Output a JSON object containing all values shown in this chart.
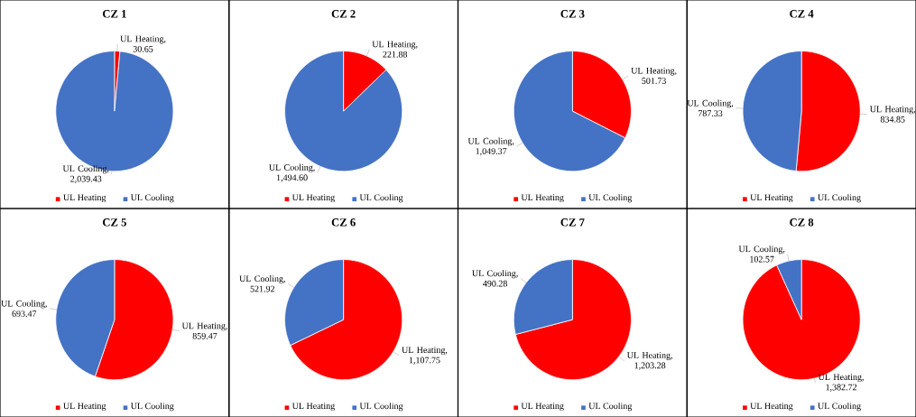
{
  "chart_data": [
    {
      "type": "pie",
      "title": "CZ 1",
      "categories": [
        "UL Heating",
        "UL Cooling"
      ],
      "values": [
        30.65,
        2039.43
      ],
      "value_labels": [
        "UL Heating, 30.65",
        "UL Cooling, 2,039.43"
      ],
      "colors": [
        "#ff0000",
        "#4472c4"
      ],
      "legend": "bottom"
    },
    {
      "type": "pie",
      "title": "CZ 2",
      "categories": [
        "UL Heating",
        "UL Cooling"
      ],
      "values": [
        221.88,
        1494.6
      ],
      "value_labels": [
        "UL Heating, 221.88",
        "UL Cooling, 1,494.60"
      ],
      "colors": [
        "#ff0000",
        "#4472c4"
      ],
      "legend": "bottom"
    },
    {
      "type": "pie",
      "title": "CZ 3",
      "categories": [
        "UL Heating",
        "UL Cooling"
      ],
      "values": [
        501.73,
        1049.37
      ],
      "value_labels": [
        "UL Heating, 501.73",
        "UL Cooling, 1,049.37"
      ],
      "colors": [
        "#ff0000",
        "#4472c4"
      ],
      "legend": "bottom"
    },
    {
      "type": "pie",
      "title": "CZ 4",
      "categories": [
        "UL Heating",
        "UL Cooling"
      ],
      "values": [
        834.85,
        787.33
      ],
      "value_labels": [
        "UL Heating, 834.85",
        "UL Cooling, 787.33"
      ],
      "colors": [
        "#ff0000",
        "#4472c4"
      ],
      "legend": "bottom"
    },
    {
      "type": "pie",
      "title": "CZ 5",
      "categories": [
        "UL Heating",
        "UL Cooling"
      ],
      "values": [
        859.47,
        693.47
      ],
      "value_labels": [
        "UL Heating, 859.47",
        "UL Cooling, 693.47"
      ],
      "colors": [
        "#ff0000",
        "#4472c4"
      ],
      "legend": "bottom"
    },
    {
      "type": "pie",
      "title": "CZ 6",
      "categories": [
        "UL Heating",
        "UL Cooling"
      ],
      "values": [
        1107.75,
        521.92
      ],
      "value_labels": [
        "UL Heating, 1,107.75",
        "UL Cooling, 521.92"
      ],
      "colors": [
        "#ff0000",
        "#4472c4"
      ],
      "legend": "bottom"
    },
    {
      "type": "pie",
      "title": "CZ 7",
      "categories": [
        "UL Heating",
        "UL Cooling"
      ],
      "values": [
        1203.28,
        490.28
      ],
      "value_labels": [
        "UL Heating, 1,203.28",
        "UL Cooling, 490.28"
      ],
      "colors": [
        "#ff0000",
        "#4472c4"
      ],
      "legend": "bottom"
    },
    {
      "type": "pie",
      "title": "CZ 8",
      "categories": [
        "UL Heating",
        "UL Cooling"
      ],
      "values": [
        1382.72,
        102.57
      ],
      "value_labels": [
        "UL Heating, 1,382.72",
        "UL Cooling, 102.57"
      ],
      "colors": [
        "#ff0000",
        "#4472c4"
      ],
      "legend": "bottom"
    }
  ]
}
